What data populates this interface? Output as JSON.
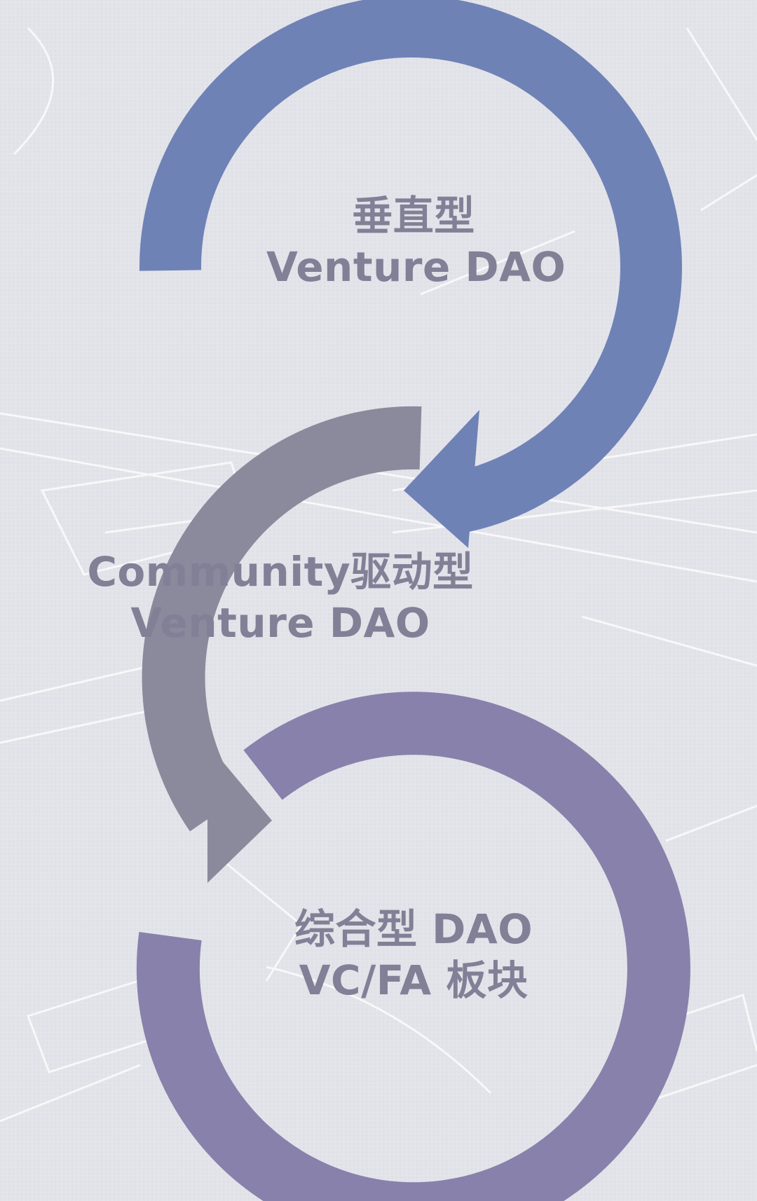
{
  "colors": {
    "background": "#e3e3ea",
    "arrow_top": "#6e82b6",
    "arrow_middle": "#8a8a9c",
    "ring_bottom": "#8781ab",
    "label_text": "#828096",
    "sketch_lines": "#ffffff"
  },
  "nodes": [
    {
      "id": "top",
      "line1": "垂直型",
      "line2": "Venture DAO"
    },
    {
      "id": "middle",
      "line1": "Community驱动型",
      "line2": "Venture DAO"
    },
    {
      "id": "bottom",
      "line1": "综合型 DAO",
      "line2": "VC/FA 板块"
    }
  ]
}
